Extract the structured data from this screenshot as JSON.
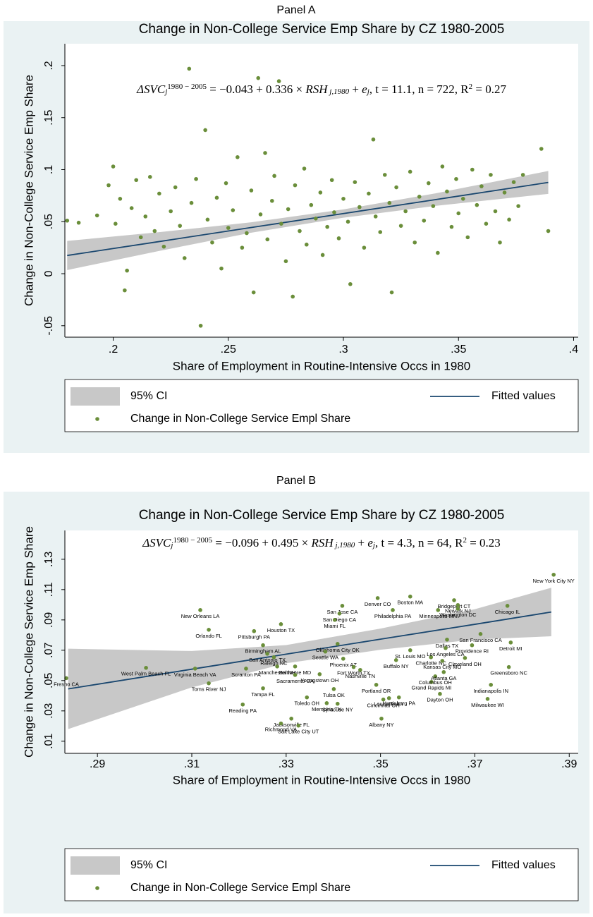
{
  "chart_data": [
    {
      "type": "scatter",
      "panel": "Panel A",
      "title": "Change in Non-College Service Emp Share by CZ 1980-2005",
      "equation": [
        {
          "text": "ΔSVC",
          "italic": true
        },
        {
          "text": "j",
          "shift": "sub",
          "italic": true
        },
        {
          "text": "1980 − 2005",
          "shift": "sup"
        },
        {
          "text": " = −0.043 + 0.336 × "
        },
        {
          "text": "RSH",
          "italic": true
        },
        {
          "text": " j,1980",
          "shift": "sub",
          "italic": true
        },
        {
          "text": " + "
        },
        {
          "text": "e",
          "italic": true
        },
        {
          "text": "j",
          "shift": "sub",
          "italic": true
        },
        {
          "text": ", t = 11.1, n = 722, R"
        },
        {
          "text": "2",
          "shift": "sup"
        },
        {
          "text": " = 0.27"
        }
      ],
      "xlabel": "Share of Employment in Routine-Intensive Occs in 1980",
      "ylabel": "Change in Non-College Service Emp Share",
      "xlim": [
        0.179,
        0.402
      ],
      "ylim": [
        -0.061,
        0.221
      ],
      "xticks": [
        {
          "value": 0.2,
          "label": ".2"
        },
        {
          "value": 0.25,
          "label": ".25"
        },
        {
          "value": 0.3,
          "label": ".3"
        },
        {
          "value": 0.35,
          "label": ".35"
        },
        {
          "value": 0.4,
          "label": ".4"
        }
      ],
      "yticks": [
        {
          "value": -0.05,
          "label": "-.05"
        },
        0,
        {
          "value": 0.05,
          "label": ".05"
        },
        {
          "value": 0.1,
          "label": ".1"
        },
        {
          "value": 0.15,
          "label": ".15"
        },
        {
          "value": 0.2,
          "label": ".2"
        }
      ],
      "grid": false,
      "series": [
        {
          "name": "95% CI",
          "type": "band",
          "color": "#c8c8c8",
          "x": [
            0.18,
            0.22,
            0.26,
            0.3,
            0.34,
            0.389
          ],
          "lower": [
            0.0035,
            0.0219,
            0.0394,
            0.0538,
            0.0652,
            0.0767
          ],
          "upper": [
            0.0315,
            0.0399,
            0.0494,
            0.0618,
            0.0772,
            0.0987
          ]
        },
        {
          "name": "Fitted values",
          "type": "line",
          "color": "#1a476f",
          "x": [
            0.18,
            0.22,
            0.26,
            0.3,
            0.34,
            0.389
          ],
          "values": [
            0.0175,
            0.0309,
            0.0444,
            0.0578,
            0.0712,
            0.0877
          ]
        },
        {
          "name": "Change in Non-College Service Empl Share",
          "type": "scatter",
          "color": "#6a8e3a",
          "x": [
            0.18,
            0.185,
            0.193,
            0.198,
            0.2,
            0.201,
            0.203,
            0.205,
            0.206,
            0.208,
            0.21,
            0.212,
            0.214,
            0.216,
            0.218,
            0.22,
            0.222,
            0.225,
            0.227,
            0.229,
            0.231,
            0.233,
            0.234,
            0.236,
            0.238,
            0.24,
            0.241,
            0.243,
            0.245,
            0.247,
            0.249,
            0.25,
            0.252,
            0.254,
            0.256,
            0.258,
            0.26,
            0.261,
            0.263,
            0.264,
            0.266,
            0.267,
            0.269,
            0.27,
            0.272,
            0.273,
            0.275,
            0.276,
            0.278,
            0.279,
            0.281,
            0.283,
            0.284,
            0.286,
            0.288,
            0.29,
            0.291,
            0.293,
            0.295,
            0.296,
            0.298,
            0.3,
            0.302,
            0.303,
            0.305,
            0.307,
            0.309,
            0.311,
            0.313,
            0.314,
            0.316,
            0.318,
            0.32,
            0.321,
            0.323,
            0.325,
            0.327,
            0.329,
            0.331,
            0.333,
            0.335,
            0.337,
            0.339,
            0.341,
            0.343,
            0.345,
            0.347,
            0.349,
            0.35,
            0.352,
            0.354,
            0.356,
            0.358,
            0.36,
            0.362,
            0.364,
            0.366,
            0.368,
            0.37,
            0.372,
            0.374,
            0.376,
            0.378,
            0.386,
            0.389
          ],
          "values": [
            0.051,
            0.049,
            0.056,
            0.085,
            0.103,
            0.048,
            0.072,
            -0.016,
            0.003,
            0.063,
            0.09,
            0.035,
            0.055,
            0.093,
            0.041,
            0.077,
            0.026,
            0.06,
            0.083,
            0.046,
            0.015,
            0.197,
            0.068,
            0.091,
            -0.05,
            0.138,
            0.052,
            0.03,
            0.073,
            0.005,
            0.087,
            0.044,
            0.061,
            0.112,
            0.025,
            0.039,
            0.08,
            -0.018,
            0.188,
            0.057,
            0.116,
            0.033,
            0.07,
            0.094,
            0.185,
            0.048,
            0.012,
            0.062,
            -0.022,
            0.085,
            0.041,
            0.101,
            0.028,
            0.066,
            0.053,
            0.078,
            0.018,
            0.045,
            0.09,
            0.059,
            0.034,
            0.072,
            0.05,
            -0.01,
            0.088,
            0.064,
            0.025,
            0.077,
            0.129,
            0.055,
            0.04,
            0.095,
            0.068,
            -0.018,
            0.083,
            0.046,
            0.06,
            0.098,
            0.03,
            0.074,
            0.051,
            0.087,
            0.065,
            0.02,
            0.103,
            0.079,
            0.045,
            0.091,
            0.058,
            0.072,
            0.035,
            0.1,
            0.066,
            0.084,
            0.048,
            0.095,
            0.06,
            0.03,
            0.078,
            0.052,
            0.088,
            0.065,
            0.095,
            0.12,
            0.041
          ]
        }
      ]
    },
    {
      "type": "scatter",
      "panel": "Panel B",
      "title": "Change in Non-College Service Emp Share by CZ 1980-2005",
      "equation": [
        {
          "text": "ΔSVC",
          "italic": true
        },
        {
          "text": "j",
          "shift": "sub",
          "italic": true
        },
        {
          "text": "1980 − 2005",
          "shift": "sup"
        },
        {
          "text": " = −0.096 + 0.495 × "
        },
        {
          "text": "RSH",
          "italic": true
        },
        {
          "text": " j,1980",
          "shift": "sub",
          "italic": true
        },
        {
          "text": " + "
        },
        {
          "text": "e",
          "italic": true
        },
        {
          "text": "j",
          "shift": "sub",
          "italic": true
        },
        {
          "text": ", t = 4.3, n = 64, R"
        },
        {
          "text": "2",
          "shift": "sup"
        },
        {
          "text": " = 0.23"
        }
      ],
      "xlabel": "Share of Employment in Routine-Intensive Occs in 1980",
      "ylabel": "Change in Non-College Service Emp Share",
      "xlim": [
        0.2831,
        0.3919
      ],
      "ylim": [
        0.002,
        0.149
      ],
      "xticks": [
        {
          "value": 0.29,
          "label": ".29"
        },
        {
          "value": 0.31,
          "label": ".31"
        },
        {
          "value": 0.33,
          "label": ".33"
        },
        {
          "value": 0.35,
          "label": ".35"
        },
        {
          "value": 0.37,
          "label": ".37"
        },
        {
          "value": 0.39,
          "label": ".39"
        }
      ],
      "yticks": [
        {
          "value": 0.01,
          "label": ".01"
        },
        {
          "value": 0.03,
          "label": ".03"
        },
        {
          "value": 0.05,
          "label": ".05"
        },
        {
          "value": 0.07,
          "label": ".07"
        },
        {
          "value": 0.09,
          "label": ".09"
        },
        {
          "value": 0.11,
          "label": ".11"
        },
        {
          "value": 0.13,
          "label": ".13"
        }
      ],
      "grid": false,
      "series": [
        {
          "name": "95% CI",
          "type": "band",
          "color": "#c8c8c8",
          "x": [
            0.2838,
            0.31,
            0.33,
            0.35,
            0.37,
            0.3862
          ],
          "lower": [
            0.018,
            0.0455,
            0.0614,
            0.0703,
            0.0771,
            0.0792
          ],
          "upper": [
            0.071,
            0.0695,
            0.0734,
            0.0843,
            0.0971,
            0.1112
          ]
        },
        {
          "name": "Fitted values",
          "type": "line",
          "color": "#1a476f",
          "x": [
            0.2838,
            0.31,
            0.33,
            0.35,
            0.37,
            0.3862
          ],
          "values": [
            0.0445,
            0.0575,
            0.0674,
            0.0773,
            0.0871,
            0.0952
          ]
        },
        {
          "name": "Change in Non-College Service Empl Share",
          "type": "scatter",
          "color": "#6a8e3a",
          "point_labels": [
            "New York City NY",
            "Fresno CA",
            "West Palm Beach FL",
            "Virginia Beach VA",
            "Toms River NJ",
            "New Orleans LA",
            "Orlando FL",
            "Pittsburgh PA",
            "Houston TX",
            "Birmingham AL",
            "San Antonio TX",
            "Scranton PA",
            "Raleigh NC",
            "Manchester NH",
            "Baltimore MD",
            "Sacramento CA",
            "Youngstown OH",
            "Tampa FL",
            "Toledo OH",
            "Reading PA",
            "Jacksonville FL",
            "Richmond VA",
            "Salt Lake City UT",
            "Memphis TN",
            "Syracuse NY",
            "Tulsa OK",
            "San Jose CA",
            "San Diego CA",
            "Miami FL",
            "Denver CO",
            "Boston MA",
            "Philadelphia PA",
            "Oklahoma City OK",
            "Seattle WA",
            "Phoenix AZ",
            "Fort Worth TX",
            "Nashville TN",
            "St. Louis MO",
            "Buffalo NY",
            "Portland OR",
            "Louisville KY",
            "Cincinnati OH",
            "Harrisburg PA",
            "Albany NY",
            "Grand Rapids MI",
            "Columbus OH",
            "Atlanta GA",
            "Dayton OH",
            "Charlotte NC",
            "Kansas City MO",
            "Cleveland OH",
            "Dallas TX",
            "Los Angeles CA",
            "Bridgeport CT",
            "Newark NJ",
            "Washington DC",
            "Minneapolis MN",
            "Chicago IL",
            "San Francisco CA",
            "Providence RI",
            "Detroit MI",
            "Greensboro NC",
            "Indianapolis IN",
            "Milwaukee WI"
          ],
          "x": [
            0.3867,
            0.2834,
            0.3003,
            0.3107,
            0.3136,
            0.3118,
            0.3136,
            0.3232,
            0.3289,
            0.3251,
            0.326,
            0.3215,
            0.3274,
            0.3281,
            0.3319,
            0.3319,
            0.3371,
            0.3251,
            0.3344,
            0.3208,
            0.3311,
            0.3289,
            0.3326,
            0.3386,
            0.3409,
            0.3401,
            0.3419,
            0.3413,
            0.3403,
            0.3494,
            0.3563,
            0.3526,
            0.3409,
            0.3383,
            0.3421,
            0.3443,
            0.3457,
            0.3563,
            0.3533,
            0.3491,
            0.3518,
            0.3506,
            0.3539,
            0.3502,
            0.3608,
            0.3616,
            0.3634,
            0.3626,
            0.3607,
            0.3631,
            0.3679,
            0.3641,
            0.3638,
            0.3656,
            0.3664,
            0.3664,
            0.3622,
            0.3769,
            0.3712,
            0.3694,
            0.3776,
            0.3772,
            0.3734,
            0.3727
          ],
          "values": [
            0.1198,
            0.0516,
            0.0584,
            0.0579,
            0.0482,
            0.0965,
            0.0835,
            0.0826,
            0.0872,
            0.0733,
            0.0677,
            0.0579,
            0.0654,
            0.0593,
            0.0593,
            0.0537,
            0.0542,
            0.0449,
            0.0389,
            0.0342,
            0.0249,
            0.0217,
            0.0203,
            0.0351,
            0.0347,
            0.0444,
            0.0993,
            0.0942,
            0.09,
            0.1044,
            0.1054,
            0.0965,
            0.0742,
            0.0691,
            0.0644,
            0.0589,
            0.057,
            0.07,
            0.0635,
            0.0472,
            0.0384,
            0.0375,
            0.0389,
            0.0249,
            0.0491,
            0.0528,
            0.0556,
            0.0412,
            0.0654,
            0.063,
            0.0649,
            0.077,
            0.0714,
            0.103,
            0.0998,
            0.0974,
            0.0965,
            0.0993,
            0.0807,
            0.0733,
            0.0751,
            0.0589,
            0.0472,
            0.0379
          ]
        }
      ]
    }
  ]
}
